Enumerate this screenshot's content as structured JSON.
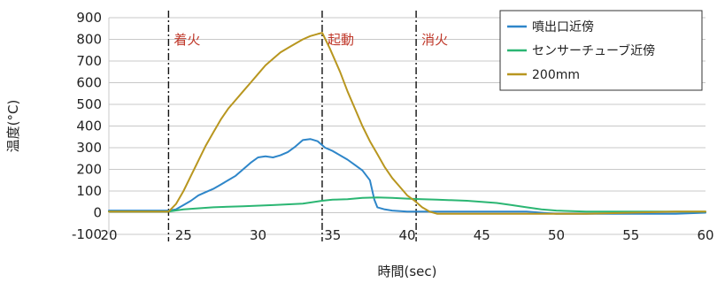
{
  "chart_data": {
    "type": "line",
    "xlabel": "時間(sec)",
    "ylabel": "温度(°C)",
    "xlim": [
      20,
      60
    ],
    "ylim": [
      -100,
      900
    ],
    "x_ticks": [
      "20",
      "25",
      "30",
      "35",
      "40",
      "45",
      "50",
      "55",
      "60"
    ],
    "y_ticks": [
      "900",
      "800",
      "700",
      "600",
      "500",
      "400",
      "300",
      "200",
      "100",
      "0",
      "-100"
    ],
    "x_tick_values": [
      20,
      25,
      30,
      35,
      40,
      45,
      50,
      55,
      60
    ],
    "y_tick_values": [
      900,
      800,
      700,
      600,
      500,
      400,
      300,
      200,
      100,
      0,
      -100
    ],
    "grid": true,
    "legend_position": "top-right",
    "event_lines": [
      {
        "x": 24.0,
        "label": "着火"
      },
      {
        "x": 34.3,
        "label": "起動"
      },
      {
        "x": 40.6,
        "label": "消火"
      }
    ],
    "series": [
      {
        "name": "噴出口近傍",
        "color": "#2e86c9",
        "points": [
          [
            20,
            10
          ],
          [
            24,
            10
          ],
          [
            24.5,
            15
          ],
          [
            25,
            35
          ],
          [
            25.5,
            55
          ],
          [
            26,
            80
          ],
          [
            26.5,
            95
          ],
          [
            27,
            110
          ],
          [
            27.5,
            130
          ],
          [
            28,
            150
          ],
          [
            28.5,
            170
          ],
          [
            29,
            200
          ],
          [
            29.5,
            230
          ],
          [
            30,
            255
          ],
          [
            30.5,
            260
          ],
          [
            31,
            255
          ],
          [
            31.5,
            265
          ],
          [
            32,
            280
          ],
          [
            32.5,
            305
          ],
          [
            33,
            335
          ],
          [
            33.5,
            340
          ],
          [
            34,
            330
          ],
          [
            34.5,
            300
          ],
          [
            35,
            285
          ],
          [
            35.5,
            265
          ],
          [
            36,
            245
          ],
          [
            36.5,
            220
          ],
          [
            37,
            195
          ],
          [
            37.5,
            150
          ],
          [
            37.8,
            60
          ],
          [
            38,
            25
          ],
          [
            38.5,
            15
          ],
          [
            39,
            10
          ],
          [
            40,
            5
          ],
          [
            41,
            5
          ],
          [
            42,
            5
          ],
          [
            44,
            5
          ],
          [
            46,
            5
          ],
          [
            48,
            5
          ],
          [
            50,
            -5
          ],
          [
            52,
            -5
          ],
          [
            55,
            -5
          ],
          [
            58,
            -5
          ],
          [
            60,
            0
          ]
        ]
      },
      {
        "name": "センサーチューブ近傍",
        "color": "#2bb673",
        "points": [
          [
            20,
            5
          ],
          [
            24,
            5
          ],
          [
            25,
            15
          ],
          [
            27,
            25
          ],
          [
            29,
            30
          ],
          [
            31,
            35
          ],
          [
            33,
            42
          ],
          [
            34.3,
            55
          ],
          [
            35,
            60
          ],
          [
            36,
            62
          ],
          [
            37,
            68
          ],
          [
            38,
            70
          ],
          [
            39,
            68
          ],
          [
            40,
            65
          ],
          [
            41,
            62
          ],
          [
            42,
            60
          ],
          [
            44,
            55
          ],
          [
            45,
            50
          ],
          [
            46,
            45
          ],
          [
            47,
            35
          ],
          [
            48,
            25
          ],
          [
            49,
            15
          ],
          [
            50,
            10
          ],
          [
            52,
            5
          ],
          [
            55,
            5
          ],
          [
            58,
            5
          ],
          [
            60,
            5
          ]
        ]
      },
      {
        "name": "200mm",
        "color": "#b8961f",
        "points": [
          [
            20,
            5
          ],
          [
            24,
            5
          ],
          [
            24.5,
            40
          ],
          [
            25,
            100
          ],
          [
            25.5,
            170
          ],
          [
            26,
            240
          ],
          [
            26.5,
            310
          ],
          [
            27,
            370
          ],
          [
            27.5,
            430
          ],
          [
            28,
            480
          ],
          [
            28.5,
            520
          ],
          [
            29,
            560
          ],
          [
            29.5,
            600
          ],
          [
            30,
            640
          ],
          [
            30.5,
            680
          ],
          [
            31,
            710
          ],
          [
            31.5,
            740
          ],
          [
            32,
            760
          ],
          [
            32.5,
            780
          ],
          [
            33,
            800
          ],
          [
            33.5,
            815
          ],
          [
            34,
            825
          ],
          [
            34.3,
            830
          ],
          [
            34.8,
            760
          ],
          [
            35.5,
            650
          ],
          [
            36,
            560
          ],
          [
            36.5,
            480
          ],
          [
            37,
            400
          ],
          [
            37.5,
            330
          ],
          [
            38,
            270
          ],
          [
            38.5,
            210
          ],
          [
            39,
            160
          ],
          [
            39.5,
            120
          ],
          [
            40,
            80
          ],
          [
            40.5,
            55
          ],
          [
            41,
            25
          ],
          [
            41.5,
            5
          ],
          [
            42,
            -5
          ],
          [
            44,
            -5
          ],
          [
            46,
            -5
          ],
          [
            48,
            -5
          ],
          [
            50,
            -5
          ],
          [
            52,
            -5
          ],
          [
            55,
            0
          ],
          [
            58,
            5
          ],
          [
            60,
            5
          ]
        ]
      }
    ]
  }
}
